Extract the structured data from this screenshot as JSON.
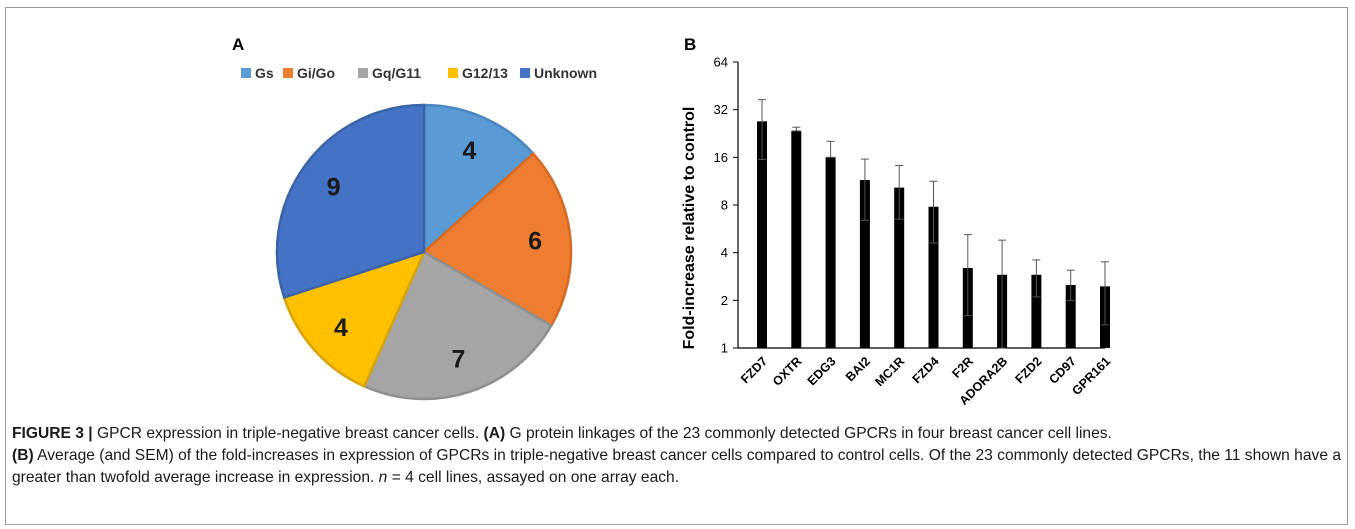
{
  "figure": {
    "panel_a_label": "A",
    "panel_b_label": "B",
    "caption": {
      "figure_label": "FIGURE 3 |",
      "intro": " GPCR expression in triple-negative breast cancer cells. ",
      "a_ref": "(A)",
      "a_text": " G protein linkages of the 23 commonly detected GPCRs in four breast cancer cell lines.",
      "b_ref": "(B)",
      "b_text": " Average (and SEM) of the fold-increases in expression of GPCRs in triple-negative breast cancer cells compared to control cells. Of the 23 commonly detected GPCRs, the 11 shown have a greater than twofold average increase in expression. ",
      "n_italic": "n",
      "n_rest": " = 4 cell lines, assayed on one array each."
    }
  },
  "chart_data": [
    {
      "type": "pie",
      "title": "",
      "legend_position": "top",
      "categories": [
        "Gs",
        "Gi/Go",
        "Gq/G11",
        "G12/13",
        "Unknown"
      ],
      "values": [
        4,
        6,
        7,
        4,
        9
      ],
      "colors": [
        "#5b9bd5",
        "#ed7d31",
        "#a5a5a5",
        "#ffc000",
        "#4472c4"
      ],
      "edge_colors": [
        "#4a86bf",
        "#d56a22",
        "#8f8f8f",
        "#d9a300",
        "#3a63a8"
      ],
      "start_angle_deg": 0,
      "direction": "clockwise",
      "data_labels": [
        "4",
        "6",
        "7",
        "4",
        "9"
      ]
    },
    {
      "type": "bar",
      "title": "",
      "xlabel": "",
      "ylabel": "Fold-increase relative to control",
      "y_scale": "log2",
      "ylim": [
        1,
        64
      ],
      "yticks": [
        1,
        2,
        4,
        8,
        16,
        32,
        64
      ],
      "ytick_labels": [
        "1",
        "2",
        "4",
        "8",
        "16",
        "32",
        "64"
      ],
      "bar_color": "#000000",
      "categories": [
        "FZD7",
        "OXTR",
        "EDG3",
        "BAI2",
        "MC1R",
        "FZD4",
        "F2R",
        "ADORA2B",
        "FZD2",
        "CD97",
        "GPR161"
      ],
      "values": [
        27,
        23.5,
        16,
        11.5,
        10.3,
        7.8,
        3.2,
        2.9,
        2.9,
        2.5,
        2.45
      ],
      "error_upper": [
        37,
        24.8,
        20.2,
        15.6,
        14.2,
        11.3,
        5.2,
        4.8,
        3.6,
        3.1,
        3.5
      ],
      "error_lower": [
        15.5,
        23.5,
        16,
        6.4,
        6.5,
        4.6,
        1.6,
        1.0,
        2.1,
        2.0,
        1.4
      ],
      "grid": false
    }
  ]
}
